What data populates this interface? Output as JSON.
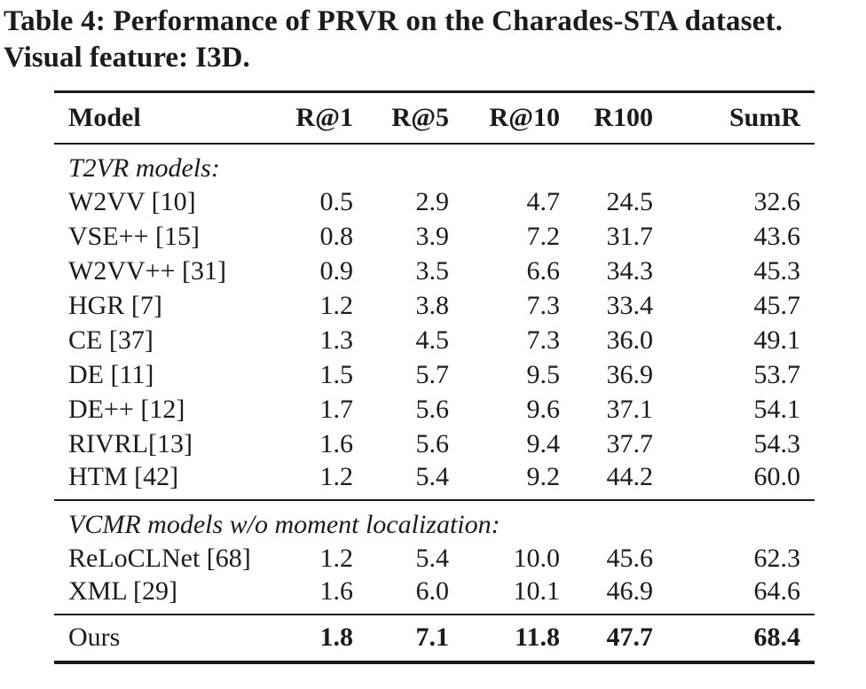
{
  "colors": {
    "text": "#1b1b1b",
    "background": "#ffffff",
    "rule": "#1b1b1b"
  },
  "caption": {
    "line1": "Table 4: Performance of PRVR on the Charades-STA dataset.",
    "line2": "Visual feature: I3D."
  },
  "table": {
    "columns": [
      "Model",
      "R@1",
      "R@5",
      "R@10",
      "R100",
      "SumR"
    ],
    "sections": [
      {
        "header": "T2VR models:",
        "rows": [
          {
            "model": "W2VV [10]",
            "values": [
              "0.5",
              "2.9",
              "4.7",
              "24.5",
              "32.6"
            ]
          },
          {
            "model": "VSE++ [15]",
            "values": [
              "0.8",
              "3.9",
              "7.2",
              "31.7",
              "43.6"
            ]
          },
          {
            "model": "W2VV++ [31]",
            "values": [
              "0.9",
              "3.5",
              "6.6",
              "34.3",
              "45.3"
            ]
          },
          {
            "model": "HGR [7]",
            "values": [
              "1.2",
              "3.8",
              "7.3",
              "33.4",
              "45.7"
            ]
          },
          {
            "model": "CE [37]",
            "values": [
              "1.3",
              "4.5",
              "7.3",
              "36.0",
              "49.1"
            ]
          },
          {
            "model": "DE [11]",
            "values": [
              "1.5",
              "5.7",
              "9.5",
              "36.9",
              "53.7"
            ]
          },
          {
            "model": "DE++ [12]",
            "values": [
              "1.7",
              "5.6",
              "9.6",
              "37.1",
              "54.1"
            ]
          },
          {
            "model": "RIVRL[13]",
            "values": [
              "1.6",
              "5.6",
              "9.4",
              "37.7",
              "54.3"
            ]
          },
          {
            "model": "HTM [42]",
            "values": [
              "1.2",
              "5.4",
              "9.2",
              "44.2",
              "60.0"
            ]
          }
        ]
      },
      {
        "header": "VCMR models w/o moment localization:",
        "rows": [
          {
            "model": "ReLoCLNet [68]",
            "values": [
              "1.2",
              "5.4",
              "10.0",
              "45.6",
              "62.3"
            ]
          },
          {
            "model": "XML [29]",
            "values": [
              "1.6",
              "6.0",
              "10.1",
              "46.9",
              "64.6"
            ]
          }
        ]
      }
    ],
    "final_row": {
      "model": "Ours",
      "values": [
        "1.8",
        "7.1",
        "11.8",
        "47.7",
        "68.4"
      ]
    }
  }
}
